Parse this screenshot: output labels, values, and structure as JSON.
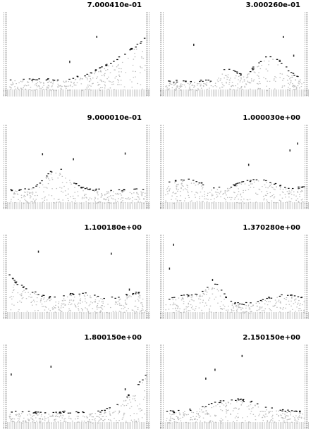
{
  "panels": [
    {
      "title": "7.000410e-01"
    },
    {
      "title": "3.000260e-01"
    },
    {
      "title": "9.000010e-01"
    },
    {
      "title": "1.000030e+00"
    },
    {
      "title": "1.100180e+00"
    },
    {
      "title": "1.370280e+00"
    },
    {
      "title": "1.800150e+00"
    },
    {
      "title": "2.150150e+00"
    }
  ]
}
